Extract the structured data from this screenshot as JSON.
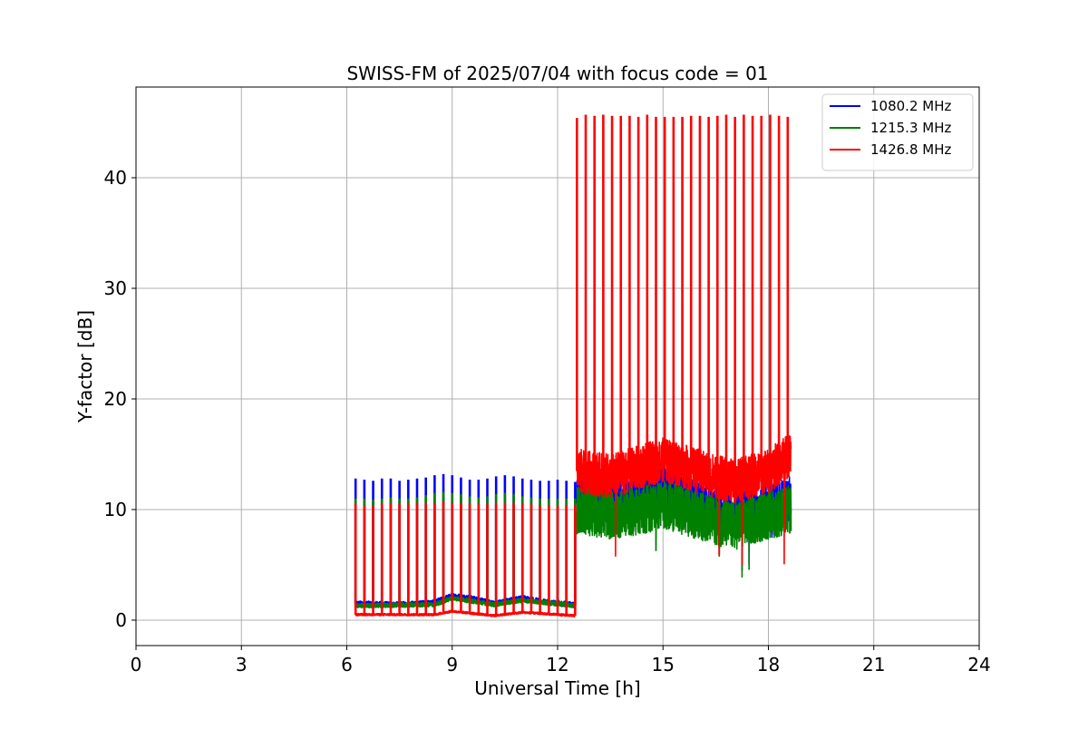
{
  "chart_data": {
    "type": "line",
    "title": "SWISS-FM of 2025/07/04 with focus code = 01",
    "xlabel": "Universal Time [h]",
    "ylabel": "Y-factor [dB]",
    "xlim": [
      0,
      24
    ],
    "ylim": [
      -2.3,
      48.2
    ],
    "xticks": [
      0,
      3,
      6,
      9,
      12,
      15,
      18,
      21,
      24
    ],
    "xtick_labels": [
      "0",
      "3",
      "6",
      "9",
      "12",
      "15",
      "18",
      "21",
      "24"
    ],
    "yticks": [
      0,
      10,
      20,
      30,
      40
    ],
    "ytick_labels": [
      "0",
      "10",
      "20",
      "30",
      "40"
    ],
    "grid": true,
    "legend_position": "top-right",
    "series": [
      {
        "name": "1080.2 MHz",
        "color": "#0000ff",
        "segments": [
          {
            "x_range": [
              6.25,
              12.5
            ],
            "baseline": [
              [
                6.25,
                1.5
              ],
              [
                7.5,
                1.4
              ],
              [
                8.5,
                1.6
              ],
              [
                9.0,
                2.2
              ],
              [
                9.5,
                2.0
              ],
              [
                10.2,
                1.5
              ],
              [
                11.0,
                2.0
              ],
              [
                11.7,
                1.6
              ],
              [
                12.5,
                1.4
              ]
            ],
            "noise": 0.25,
            "spike_period_h": 0.25,
            "spike_peaks": [
              12.8,
              12.7,
              12.6,
              12.8,
              12.8,
              12.6,
              12.7,
              12.8,
              12.9,
              13.1,
              13.2,
              13.1,
              12.9,
              12.7,
              12.7,
              12.8,
              13.0,
              13.1,
              13.0,
              12.8,
              12.7,
              12.6,
              12.6,
              12.7,
              12.6,
              12.5
            ]
          },
          {
            "x_range": [
              12.55,
              18.65
            ],
            "baseline": [
              [
                12.55,
                11.0
              ],
              [
                13.5,
                10.5
              ],
              [
                14.5,
                11.5
              ],
              [
                15.0,
                12.0
              ],
              [
                16.0,
                10.5
              ],
              [
                17.0,
                9.5
              ],
              [
                18.0,
                10.5
              ],
              [
                18.65,
                11.0
              ]
            ],
            "noise": 2.0,
            "dips": [
              [
                17.25,
                4.5
              ],
              [
                17.45,
                5.0
              ],
              [
                16.6,
                6.5
              ],
              [
                18.1,
                7.5
              ]
            ],
            "spike_period_h": 0,
            "spike_peaks": []
          }
        ]
      },
      {
        "name": "1215.3 MHz",
        "color": "#008000",
        "segments": [
          {
            "x_range": [
              6.25,
              12.5
            ],
            "baseline": [
              [
                6.25,
                1.3
              ],
              [
                8.5,
                1.4
              ],
              [
                9.0,
                2.0
              ],
              [
                10.2,
                1.4
              ],
              [
                11.0,
                1.8
              ],
              [
                12.5,
                1.3
              ]
            ],
            "noise": 0.2,
            "spike_period_h": 0.25,
            "spike_peaks": [
              11.0,
              11.0,
              10.9,
              11.0,
              11.1,
              11.0,
              11.0,
              11.1,
              11.3,
              11.5,
              11.6,
              11.5,
              11.4,
              11.2,
              11.1,
              11.2,
              11.4,
              11.5,
              11.4,
              11.2,
              11.1,
              11.0,
              11.0,
              11.0,
              11.0,
              11.0
            ]
          },
          {
            "x_range": [
              12.55,
              18.65
            ],
            "baseline": [
              [
                12.55,
                10.0
              ],
              [
                13.5,
                9.5
              ],
              [
                14.5,
                10.0
              ],
              [
                15.0,
                10.5
              ],
              [
                16.0,
                9.5
              ],
              [
                17.0,
                8.5
              ],
              [
                18.0,
                9.5
              ],
              [
                18.65,
                10.0
              ]
            ],
            "noise": 2.2,
            "dips": [
              [
                17.25,
                3.9
              ],
              [
                17.45,
                4.6
              ],
              [
                16.6,
                5.8
              ],
              [
                14.8,
                6.3
              ]
            ],
            "spike_period_h": 0,
            "spike_peaks": []
          }
        ]
      },
      {
        "name": "1426.8 MHz",
        "color": "#ff0000",
        "segments": [
          {
            "x_range": [
              6.25,
              12.5
            ],
            "baseline": [
              [
                6.25,
                0.5
              ],
              [
                8.5,
                0.5
              ],
              [
                9.0,
                0.8
              ],
              [
                10.2,
                0.4
              ],
              [
                11.0,
                0.7
              ],
              [
                12.5,
                0.4
              ]
            ],
            "noise": 0.1,
            "spike_period_h": 0.25,
            "spike_peaks": [
              10.5,
              10.4,
              10.4,
              10.5,
              10.6,
              10.5,
              10.5,
              10.6,
              10.6,
              10.6,
              10.7,
              10.6,
              10.6,
              10.5,
              10.5,
              10.5,
              10.6,
              10.6,
              10.6,
              10.5,
              10.5,
              10.4,
              10.4,
              10.4,
              10.4,
              10.4
            ]
          },
          {
            "x_range": [
              12.55,
              18.65
            ],
            "baseline": [
              [
                12.55,
                13.5
              ],
              [
                13.5,
                13.0
              ],
              [
                14.5,
                14.0
              ],
              [
                15.0,
                14.5
              ],
              [
                16.0,
                13.5
              ],
              [
                17.0,
                12.5
              ],
              [
                18.0,
                13.5
              ],
              [
                18.65,
                15.0
              ]
            ],
            "noise": 2.0,
            "dips": [
              [
                13.65,
                5.8
              ],
              [
                16.6,
                5.9
              ],
              [
                17.25,
                5.0
              ],
              [
                18.45,
                5.1
              ]
            ],
            "spike_period_h": 0.25,
            "spike_peaks": [
              45.4,
              45.7,
              45.6,
              45.7,
              45.6,
              45.6,
              45.6,
              45.5,
              45.7,
              45.5,
              45.5,
              45.5,
              45.5,
              45.6,
              45.6,
              45.5,
              45.6,
              45.7,
              45.5,
              45.7,
              45.6,
              45.6,
              45.7,
              45.6,
              45.5
            ]
          }
        ]
      }
    ]
  }
}
